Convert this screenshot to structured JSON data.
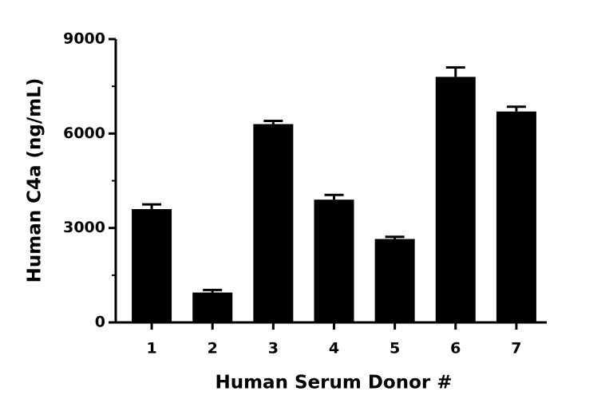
{
  "chart_data": {
    "type": "bar",
    "x_label": "Human Serum Donor #",
    "y_label": "Human C4a (ng/mL)",
    "categories": [
      "1",
      "2",
      "3",
      "4",
      "5",
      "6",
      "7"
    ],
    "values": [
      3600,
      950,
      6300,
      3900,
      2650,
      7800,
      6700
    ],
    "errors": [
      150,
      80,
      100,
      150,
      70,
      300,
      150
    ],
    "color": "#000000",
    "ylim": [
      0,
      9000
    ],
    "yticks": [
      0,
      3000,
      6000,
      9000
    ],
    "minor_yticks": [
      1500,
      4500,
      7500
    ],
    "grid": false
  }
}
